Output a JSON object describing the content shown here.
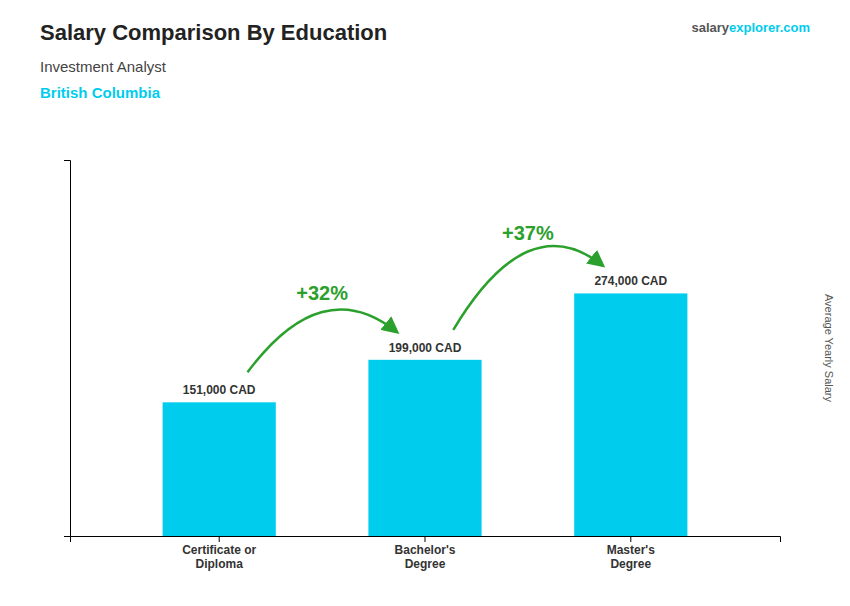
{
  "chart_data": {
    "type": "bar",
    "title": "Salary Comparison By Education",
    "subtitle": "Investment Analyst",
    "location": "British Columbia",
    "watermark": [
      "salary",
      "explorer",
      ".com"
    ],
    "ylabel": "Average Yearly Salary",
    "categories": [
      "Certificate or\nDiploma",
      "Bachelor's\nDegree",
      "Master's\nDegree"
    ],
    "values": [
      151000,
      199000,
      274000
    ],
    "value_labels": [
      "151,000 CAD",
      "199,000 CAD",
      "274,000 CAD"
    ],
    "data_labels": true,
    "annotations": [
      "+32%",
      "+37%"
    ],
    "color": "#00ccee",
    "ylim": [
      0,
      424700
    ],
    "grid": false,
    "tick_labels": "x"
  }
}
